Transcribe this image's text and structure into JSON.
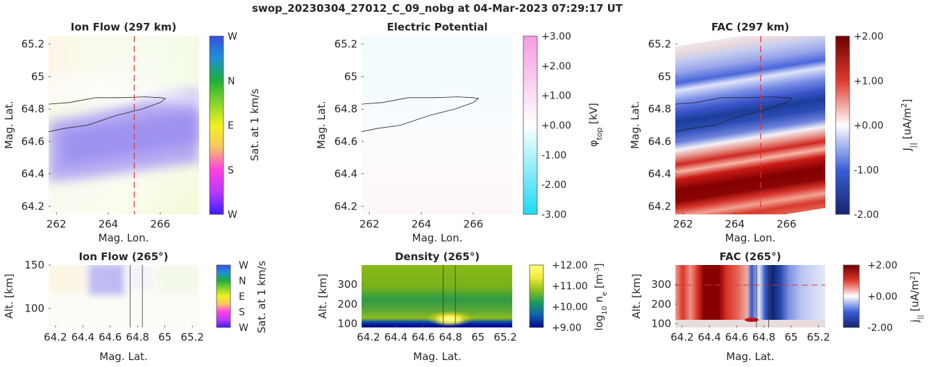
{
  "figure": {
    "title": "swop_20230304_27012_C_09_nobg at 04-Mar-2023 07:29:17 UT"
  },
  "chart_data": [
    {
      "id": "ion-flow-top",
      "type": "heatmap",
      "title": "Ion Flow (297 km)",
      "xlabel": "Mag. Lon.",
      "ylabel": "Mag. Lat.",
      "xlim": [
        261.7,
        267.5
      ],
      "ylim": [
        64.15,
        65.25
      ],
      "xticks": [
        "262",
        "264",
        "266"
      ],
      "xtick_values": [
        262,
        264,
        266
      ],
      "yticks": [
        "64.2",
        "64.4",
        "64.6",
        "64.8",
        "65",
        "65.2"
      ],
      "ytick_values": [
        64.2,
        64.4,
        64.6,
        64.8,
        65.0,
        65.2
      ],
      "colorbar": {
        "label": "Sat. at 1 km/s",
        "ticks": [
          "W",
          "N",
          "E",
          "S",
          "W"
        ],
        "colormap": [
          "#3b1cff",
          "#ff40ff",
          "#f0f020",
          "#20c020",
          "#3a4fe0"
        ]
      },
      "cut_lon": 265,
      "contour": [
        [
          261.7,
          64.83
        ],
        [
          262.5,
          64.84
        ],
        [
          263.5,
          64.87
        ],
        [
          264.5,
          64.87
        ],
        [
          265.4,
          64.875
        ],
        [
          266.0,
          64.87
        ],
        [
          266.2,
          64.865
        ],
        [
          266.0,
          64.84
        ],
        [
          265.3,
          64.8
        ],
        [
          264.3,
          64.76
        ],
        [
          263.2,
          64.7
        ],
        [
          262.3,
          64.68
        ],
        [
          261.7,
          64.66
        ]
      ]
    },
    {
      "id": "potential-top",
      "type": "heatmap",
      "title": "Electric Potential",
      "xlabel": "Mag. Lon.",
      "ylabel": "Mag. Lat.",
      "xlim": [
        261.7,
        267.5
      ],
      "ylim": [
        64.15,
        65.25
      ],
      "xticks": [
        "262",
        "264",
        "266"
      ],
      "xtick_values": [
        262,
        264,
        266
      ],
      "yticks": [
        "64.2",
        "64.4",
        "64.6",
        "64.8",
        "65",
        "65.2"
      ],
      "ytick_values": [
        64.2,
        64.4,
        64.6,
        64.8,
        65.0,
        65.2
      ],
      "colorbar": {
        "label": "φ_top [kV]",
        "label_main": "φ",
        "label_sub": "top",
        "label_tail": " [kV]",
        "ticks": [
          "+3.00",
          "+2.00",
          "+1.00",
          "+0.00",
          "-1.00",
          "-2.00",
          "-3.00"
        ],
        "range": [
          -3,
          3
        ],
        "colormap": [
          "#1ed8f5",
          "#ffffff",
          "#f59ae0"
        ]
      },
      "contour": [
        [
          261.7,
          64.83
        ],
        [
          262.5,
          64.84
        ],
        [
          263.5,
          64.87
        ],
        [
          264.5,
          64.87
        ],
        [
          265.4,
          64.875
        ],
        [
          266.0,
          64.87
        ],
        [
          266.2,
          64.865
        ],
        [
          266.0,
          64.84
        ],
        [
          265.3,
          64.8
        ],
        [
          264.3,
          64.76
        ],
        [
          263.2,
          64.7
        ],
        [
          262.3,
          64.68
        ],
        [
          261.7,
          64.66
        ]
      ]
    },
    {
      "id": "fac-top",
      "type": "heatmap",
      "title": "FAC (297 km)",
      "xlabel": "Mag. Lon.",
      "ylabel": "Mag. Lat.",
      "xlim": [
        261.7,
        267.5
      ],
      "ylim": [
        64.15,
        65.25
      ],
      "xticks": [
        "262",
        "264",
        "266"
      ],
      "xtick_values": [
        262,
        264,
        266
      ],
      "yticks": [
        "64.2",
        "64.4",
        "64.6",
        "64.8",
        "65",
        "65.2"
      ],
      "ytick_values": [
        64.2,
        64.4,
        64.6,
        64.8,
        65.0,
        65.2
      ],
      "colorbar": {
        "label": "J_|| [uA/m^2]",
        "label_main": "J",
        "label_sub": "||",
        "label_tail": " [uA/m",
        "label_sup": "2",
        "label_end": "]",
        "ticks": [
          "+2.00",
          "+1.00",
          "+0.00",
          "-1.00",
          "-2.00"
        ],
        "range": [
          -2,
          2
        ],
        "colormap": [
          "#16246b",
          "#3a5ed8",
          "#ffffff",
          "#e03a2e",
          "#6b0000"
        ]
      },
      "cut_lon": 265,
      "contour": [
        [
          261.7,
          64.83
        ],
        [
          262.5,
          64.84
        ],
        [
          263.5,
          64.87
        ],
        [
          264.5,
          64.87
        ],
        [
          265.4,
          64.875
        ],
        [
          266.0,
          64.87
        ],
        [
          266.2,
          64.865
        ],
        [
          266.0,
          64.84
        ],
        [
          265.3,
          64.8
        ],
        [
          264.3,
          64.76
        ],
        [
          263.2,
          64.7
        ],
        [
          262.3,
          64.68
        ],
        [
          261.7,
          64.66
        ]
      ]
    },
    {
      "id": "ion-flow-cut",
      "type": "heatmap",
      "title": "Ion Flow (265°)",
      "xlabel": "Mag. Lat.",
      "ylabel": "Alt. [km]",
      "xlim": [
        64.15,
        65.25
      ],
      "ylim": [
        78,
        150
      ],
      "xticks": [
        "64.2",
        "64.4",
        "64.6",
        "64.8",
        "65",
        "65.2"
      ],
      "xtick_values": [
        64.2,
        64.4,
        64.6,
        64.8,
        65.0,
        65.2
      ],
      "yticks": [
        "100",
        "150"
      ],
      "ytick_values": [
        100,
        150
      ],
      "colorbar": {
        "label": "Sat. at 1 km/s",
        "ticks": [
          "W",
          "N",
          "E",
          "S",
          "W"
        ]
      },
      "boundary_lats": [
        64.745,
        64.835
      ]
    },
    {
      "id": "density-cut",
      "type": "heatmap",
      "title": "Density (265°)",
      "xlabel": "Mag. Lat.",
      "ylabel": "Alt. [km]",
      "xlim": [
        64.15,
        65.25
      ],
      "ylim": [
        80,
        400
      ],
      "xticks": [
        "64.2",
        "64.4",
        "64.6",
        "64.8",
        "65",
        "65.2"
      ],
      "xtick_values": [
        64.2,
        64.4,
        64.6,
        64.8,
        65.0,
        65.2
      ],
      "yticks": [
        "100",
        "200",
        "300"
      ],
      "ytick_values": [
        100,
        200,
        300
      ],
      "colorbar": {
        "label": "log_10 n_e [m^-3]",
        "ticks": [
          "+12.00",
          "+11.00",
          "+10.00",
          "+9.00"
        ],
        "range": [
          9,
          12
        ]
      },
      "boundary_lats": [
        64.745,
        64.835
      ]
    },
    {
      "id": "fac-cut",
      "type": "heatmap",
      "title": "FAC (265°)",
      "xlabel": "Mag. Lat.",
      "ylabel": "Alt. [km]",
      "xlim": [
        64.15,
        65.25
      ],
      "ylim": [
        80,
        400
      ],
      "xticks": [
        "64.2",
        "64.4",
        "64.6",
        "64.8",
        "65",
        "65.2"
      ],
      "xtick_values": [
        64.2,
        64.4,
        64.6,
        64.8,
        65.0,
        65.2
      ],
      "yticks": [
        "100",
        "200",
        "300"
      ],
      "ytick_values": [
        100,
        200,
        300
      ],
      "colorbar": {
        "label": "j_|| [uA/m^2]",
        "ticks": [
          "+2.00",
          "+0.00",
          "-2.00"
        ],
        "range": [
          -2,
          2
        ]
      },
      "cut_alt": 297,
      "boundary_lats": [
        64.745,
        64.835
      ]
    }
  ]
}
